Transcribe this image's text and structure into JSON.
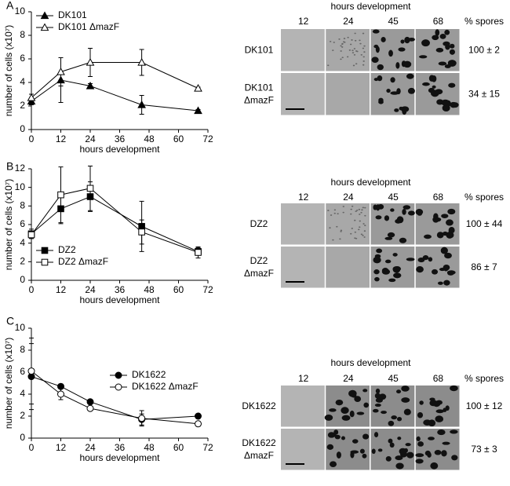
{
  "chart_data": [
    {
      "type": "line",
      "panel": "A",
      "xlabel": "hours development",
      "ylabel": "number of cells (x10⁷)",
      "x": [
        0,
        12,
        24,
        45,
        68
      ],
      "xlim": [
        0,
        72
      ],
      "xticks": [
        0,
        12,
        24,
        36,
        48,
        60,
        72
      ],
      "ylim": [
        0,
        10
      ],
      "yticks": [
        0,
        2,
        4,
        6,
        8,
        10
      ],
      "legend": "upper left",
      "series": [
        {
          "name": "DK101",
          "color": "#000000",
          "marker": "triangle",
          "marker_fill": "#000000",
          "values": [
            2.4,
            4.2,
            3.7,
            2.1,
            1.6
          ],
          "errors": [
            0.3,
            1.9,
            0.2,
            0.8,
            0.1
          ]
        },
        {
          "name": "DK101 ΔmazF",
          "color": "#000000",
          "marker": "triangle",
          "marker_fill": "#ffffff",
          "values": [
            2.7,
            4.9,
            5.7,
            5.7,
            3.5
          ],
          "errors": [
            0.3,
            1.2,
            1.2,
            1.1,
            0.1
          ]
        }
      ]
    },
    {
      "type": "line",
      "panel": "B",
      "xlabel": "hours development",
      "ylabel": "number of cells (x10⁷)",
      "x": [
        0,
        12,
        24,
        45,
        68
      ],
      "xlim": [
        0,
        72
      ],
      "xticks": [
        0,
        12,
        24,
        36,
        48,
        60,
        72
      ],
      "ylim": [
        0,
        12
      ],
      "yticks": [
        0,
        2,
        4,
        6,
        8,
        10,
        12
      ],
      "legend": "lower left",
      "series": [
        {
          "name": "DZ2",
          "color": "#000000",
          "marker": "square",
          "marker_fill": "#000000",
          "values": [
            5.0,
            7.7,
            9.0,
            5.8,
            3.1
          ],
          "errors": [
            0.5,
            1.6,
            1.6,
            2.7,
            0.4
          ]
        },
        {
          "name": "DZ2 ΔmazF",
          "color": "#000000",
          "marker": "square",
          "marker_fill": "#ffffff",
          "values": [
            4.9,
            9.2,
            9.9,
            5.2,
            3.0
          ],
          "errors": [
            0.4,
            3.0,
            2.4,
            1.3,
            0.6
          ]
        }
      ]
    },
    {
      "type": "line",
      "panel": "C",
      "xlabel": "hours development",
      "ylabel": "number of cells (x10⁷)",
      "x": [
        0,
        12,
        24,
        45,
        68
      ],
      "xlim": [
        0,
        72
      ],
      "xticks": [
        0,
        12,
        24,
        36,
        48,
        60,
        72
      ],
      "ylim": [
        0,
        10
      ],
      "yticks": [
        0,
        2,
        4,
        6,
        8,
        10
      ],
      "legend": "center right",
      "series": [
        {
          "name": "DK1622",
          "color": "#000000",
          "marker": "circle",
          "marker_fill": "#000000",
          "values": [
            5.6,
            4.7,
            3.3,
            1.7,
            2.0
          ],
          "errors": [
            3.0,
            0.2,
            0.2,
            0.5,
            0.2
          ]
        },
        {
          "name": "DK1622 ΔmazF",
          "color": "#000000",
          "marker": "circle",
          "marker_fill": "#ffffff",
          "values": [
            6.1,
            4.0,
            2.7,
            1.8,
            1.3
          ],
          "errors": [
            3.0,
            0.5,
            0.2,
            0.7,
            0.2
          ]
        }
      ]
    }
  ],
  "image_panels": [
    {
      "title": "hours development",
      "columns": [
        "12",
        "24",
        "45",
        "68"
      ],
      "spores_header": "% spores",
      "rows": [
        {
          "label": [
            "DK101"
          ],
          "spores": "100 ± 2"
        },
        {
          "label": [
            "DK101",
            "ΔmazF"
          ],
          "spores": "34 ± 15"
        }
      ]
    },
    {
      "title": "hours development",
      "columns": [
        "12",
        "24",
        "45",
        "68"
      ],
      "spores_header": "% spores",
      "rows": [
        {
          "label": [
            "DZ2"
          ],
          "spores": "100 ± 44"
        },
        {
          "label": [
            "DZ2",
            "ΔmazF"
          ],
          "spores": "86 ± 7"
        }
      ]
    },
    {
      "title": "hours development",
      "columns": [
        "12",
        "24",
        "45",
        "68"
      ],
      "spores_header": "% spores",
      "rows": [
        {
          "label": [
            "DK1622"
          ],
          "spores": "100 ± 12"
        },
        {
          "label": [
            "DK1622",
            "ΔmazF"
          ],
          "spores": "73 ± 3"
        }
      ]
    }
  ]
}
